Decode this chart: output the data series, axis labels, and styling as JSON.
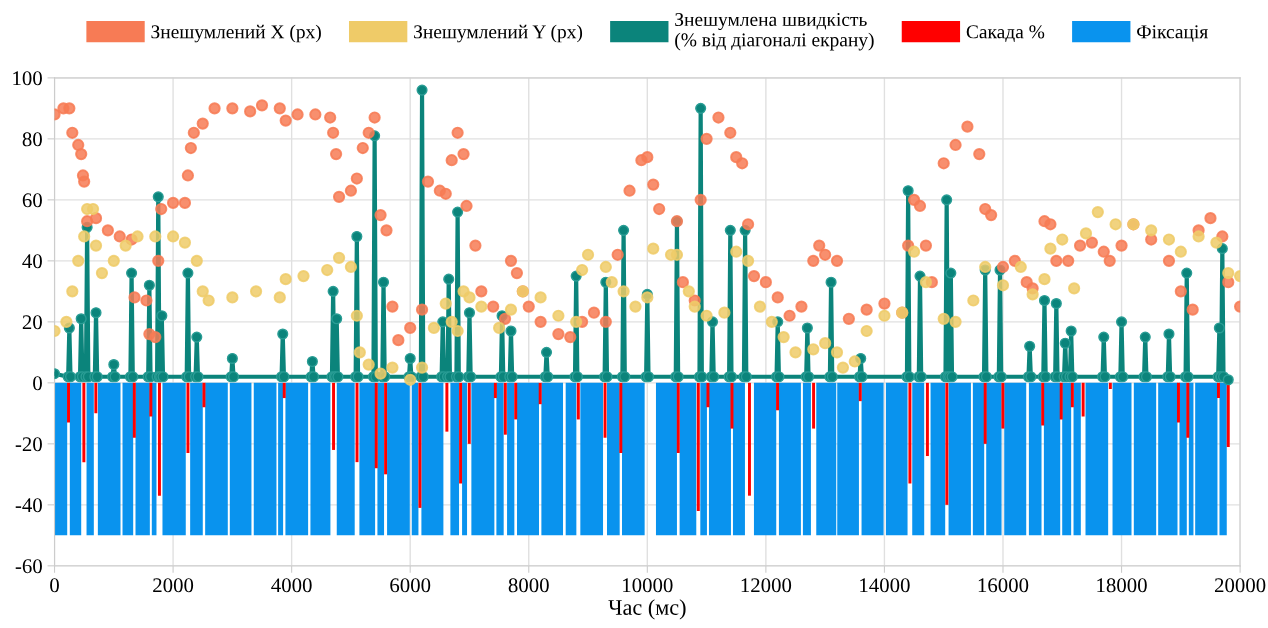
{
  "chart_data": {
    "type": "scatter",
    "xlabel": "Час (мс)",
    "xlim": [
      0,
      20000
    ],
    "xticks": [
      0,
      2000,
      4000,
      6000,
      8000,
      10000,
      12000,
      14000,
      16000,
      18000,
      20000
    ],
    "ylim": [
      -60,
      100
    ],
    "yticks": [
      -60,
      -40,
      -20,
      0,
      20,
      40,
      60,
      80,
      100
    ],
    "grid": true,
    "legend": "top",
    "series": [
      {
        "name": "Знешумлений X (px)",
        "marker": "circle",
        "color": "#f77b55",
        "x": [
          0,
          150,
          250,
          300,
          400,
          450,
          480,
          500,
          550,
          700,
          900,
          1100,
          1300,
          1350,
          1550,
          1600,
          1700,
          1750,
          1800,
          2000,
          2200,
          2250,
          2300,
          2350,
          2500,
          2700,
          3000,
          3300,
          3500,
          3800,
          3900,
          4100,
          4400,
          4650,
          4700,
          4750,
          4800,
          5000,
          5100,
          5200,
          5300,
          5400,
          5500,
          5600,
          5700,
          5800,
          6000,
          6200,
          6300,
          6500,
          6600,
          6700,
          6800,
          6900,
          6950,
          7100,
          7200,
          7400,
          7600,
          7700,
          7800,
          7900,
          8000,
          8200,
          8500,
          8700,
          8900,
          9100,
          9300,
          9500,
          9700,
          9900,
          10000,
          10100,
          10200,
          10500,
          10600,
          10800,
          10900,
          11000,
          11200,
          11400,
          11500,
          11600,
          11700,
          11800,
          12000,
          12200,
          12400,
          12600,
          12800,
          12900,
          13000,
          13200,
          13400,
          13700,
          14000,
          14300,
          14400,
          14500,
          14600,
          14700,
          14800,
          15000,
          15200,
          15400,
          15600,
          15700,
          15800,
          16000,
          16200,
          16400,
          16500,
          16700,
          16800,
          16900,
          17100,
          17300,
          17500,
          17700,
          17800,
          18000,
          18200,
          18500,
          18800,
          19000,
          19200,
          19300,
          19500,
          19700,
          19800,
          20000
        ],
        "values": [
          88,
          90,
          90,
          82,
          78,
          75,
          68,
          66,
          53,
          54,
          50,
          48,
          47,
          28,
          27,
          16,
          15,
          40,
          57,
          59,
          59,
          68,
          77,
          82,
          85,
          90,
          90,
          89,
          91,
          90,
          86,
          88,
          88,
          87,
          82,
          75,
          61,
          63,
          67,
          77,
          82,
          87,
          55,
          50,
          25,
          14,
          18,
          24,
          66,
          63,
          62,
          73,
          82,
          75,
          58,
          45,
          30,
          25,
          21,
          40,
          36,
          30,
          25,
          20,
          16,
          15,
          20,
          23,
          20,
          42,
          63,
          73,
          74,
          65,
          57,
          53,
          33,
          27,
          60,
          80,
          87,
          82,
          74,
          72,
          52,
          35,
          33,
          28,
          22,
          25,
          40,
          45,
          42,
          40,
          21,
          24,
          26,
          23,
          45,
          60,
          58,
          45,
          33,
          72,
          78,
          84,
          75,
          57,
          55,
          38,
          40,
          33,
          31,
          53,
          52,
          40,
          40,
          45,
          46,
          43,
          40,
          45,
          52,
          47,
          40,
          30,
          24,
          50,
          54,
          48,
          33,
          25
        ]
      },
      {
        "name": "Знешумлений Y (px)",
        "type": "scatter",
        "marker": "circle",
        "color": "#efcb68",
        "x": [
          0,
          200,
          300,
          400,
          500,
          550,
          650,
          700,
          800,
          1000,
          1200,
          1400,
          1700,
          2000,
          2200,
          2400,
          2500,
          2600,
          3000,
          3400,
          3800,
          3900,
          4200,
          4600,
          4800,
          5000,
          5100,
          5150,
          5300,
          5500,
          5700,
          6000,
          6200,
          6400,
          6600,
          6700,
          6800,
          6900,
          7000,
          7200,
          7500,
          7700,
          7900,
          8200,
          8500,
          8800,
          8900,
          9000,
          9300,
          9400,
          9600,
          9800,
          10000,
          10100,
          10400,
          10500,
          10700,
          10800,
          11000,
          11300,
          11500,
          11700,
          11900,
          12100,
          12300,
          12500,
          12800,
          13000,
          13200,
          13300,
          13500,
          13700,
          14000,
          14300,
          14500,
          14700,
          15000,
          15200,
          15500,
          15700,
          16000,
          16300,
          16500,
          16700,
          16800,
          17000,
          17200,
          17400,
          17600,
          17900,
          18200,
          18500,
          18800,
          19000,
          19300,
          19600,
          19800,
          20000
        ],
        "values": [
          17,
          20,
          30,
          40,
          48,
          57,
          57,
          45,
          36,
          40,
          45,
          48,
          48,
          48,
          46,
          40,
          30,
          27,
          28,
          30,
          28,
          34,
          35,
          37,
          41,
          38,
          22,
          10,
          6,
          3,
          5,
          1,
          5,
          18,
          26,
          20,
          17,
          30,
          28,
          25,
          18,
          24,
          30,
          28,
          22,
          20,
          37,
          42,
          38,
          33,
          30,
          25,
          28,
          44,
          42,
          42,
          30,
          25,
          22,
          23,
          43,
          40,
          25,
          20,
          15,
          10,
          11,
          13,
          10,
          5,
          7,
          17,
          22,
          23,
          43,
          33,
          21,
          20,
          27,
          38,
          32,
          38,
          29,
          34,
          44,
          47,
          31,
          49,
          56,
          52,
          52,
          50,
          47,
          43,
          48,
          46,
          36,
          35
        ]
      },
      {
        "name": "Знешумлена швидкість\n(% від діагоналі екрану)",
        "type": "line",
        "marker": "circle",
        "color": "#0b847b",
        "x": [
          0,
          230,
          250,
          270,
          430,
          450,
          470,
          530,
          550,
          570,
          680,
          700,
          720,
          980,
          1000,
          1020,
          1280,
          1300,
          1320,
          1580,
          1600,
          1620,
          1730,
          1750,
          1770,
          1790,
          1810,
          1830,
          2230,
          2250,
          2270,
          2380,
          2400,
          2420,
          2980,
          3000,
          3020,
          3830,
          3850,
          3870,
          4330,
          4350,
          4370,
          4680,
          4700,
          4720,
          4740,
          4760,
          4780,
          5080,
          5100,
          5120,
          5380,
          5400,
          5420,
          5530,
          5550,
          5570,
          5980,
          6000,
          6020,
          6180,
          6200,
          6220,
          6530,
          6550,
          6570,
          6630,
          6650,
          6670,
          6780,
          6800,
          6820,
          6980,
          7000,
          7020,
          7530,
          7550,
          7570,
          7680,
          7700,
          7720,
          8280,
          8300,
          8320,
          8780,
          8800,
          8820,
          9280,
          9300,
          9320,
          9580,
          9600,
          9620,
          9980,
          10000,
          10020,
          10480,
          10500,
          10520,
          10880,
          10900,
          10920,
          11080,
          11100,
          11120,
          11380,
          11400,
          11420,
          11630,
          11650,
          11670,
          12180,
          12200,
          12220,
          12680,
          12700,
          12720,
          13080,
          13100,
          13120,
          13580,
          13600,
          13620,
          14380,
          14400,
          14420,
          14580,
          14600,
          14620,
          15030,
          15050,
          15070,
          15100,
          15120,
          15140,
          15680,
          15700,
          15720,
          15930,
          15950,
          15970,
          16430,
          16450,
          16470,
          16680,
          16700,
          16720,
          16880,
          16900,
          16920,
          17030,
          17050,
          17070,
          17130,
          17150,
          17170,
          17680,
          17700,
          17720,
          17980,
          18000,
          18020,
          18380,
          18400,
          18420,
          18780,
          18800,
          18820,
          19080,
          19100,
          19120,
          19630,
          19650,
          19670,
          19680,
          19700,
          19720,
          19800
        ],
        "values": [
          3,
          2,
          18,
          2,
          2,
          21,
          2,
          2,
          51,
          2,
          2,
          23,
          2,
          2,
          6,
          2,
          2,
          36,
          2,
          2,
          32,
          2,
          2,
          61,
          2,
          2,
          22,
          2,
          2,
          36,
          2,
          2,
          15,
          2,
          2,
          8,
          2,
          2,
          16,
          2,
          2,
          7,
          2,
          2,
          30,
          2,
          2,
          21,
          2,
          2,
          48,
          2,
          2,
          81,
          2,
          2,
          33,
          2,
          2,
          8,
          2,
          2,
          96,
          2,
          2,
          20,
          2,
          2,
          34,
          2,
          2,
          56,
          2,
          2,
          23,
          2,
          2,
          22,
          2,
          2,
          17,
          2,
          2,
          10,
          2,
          2,
          35,
          2,
          2,
          33,
          2,
          2,
          50,
          2,
          2,
          29,
          2,
          2,
          53,
          2,
          2,
          90,
          2,
          2,
          20,
          2,
          2,
          50,
          2,
          2,
          50,
          2,
          2,
          20,
          2,
          2,
          18,
          2,
          2,
          33,
          2,
          2,
          8,
          2,
          2,
          63,
          2,
          2,
          35,
          2,
          2,
          60,
          2,
          2,
          36,
          2,
          2,
          37,
          2,
          2,
          37,
          2,
          2,
          12,
          2,
          2,
          27,
          2,
          2,
          26,
          2,
          2,
          13,
          2,
          2,
          17,
          2,
          2,
          15,
          2,
          2,
          20,
          2,
          2,
          15,
          2,
          2,
          16,
          2,
          2,
          36,
          2,
          2,
          18,
          2,
          2,
          44,
          2,
          1
        ]
      },
      {
        "name": "Сакада %",
        "type": "bar",
        "color": "#ff0000",
        "x": [
          236,
          495,
          697,
          1346,
          1625,
          1770,
          2251,
          2521,
          3875,
          4707,
          5103,
          5427,
          5585,
          6164,
          6619,
          6850,
          6996,
          7437,
          7605,
          7780,
          8193,
          8836,
          9287,
          9553,
          10522,
          10860,
          11023,
          11428,
          11723,
          12197,
          12805,
          13592,
          14430,
          14725,
          15053,
          15700,
          15998,
          16670,
          16982,
          17170,
          17352,
          17811,
          18960,
          19118,
          19635,
          19800
        ],
        "values": [
          -13,
          -26,
          -10,
          -18,
          -11,
          -37,
          -23,
          -8,
          -5,
          -22,
          -26,
          -28,
          -30,
          -41,
          -16,
          -33,
          -20,
          -5,
          -17,
          -12,
          -7,
          -12,
          -18,
          -23,
          -23,
          -42,
          -8,
          -15,
          -37,
          -9,
          -15,
          -6,
          -33,
          -24,
          -40,
          -20,
          -15,
          -14,
          -12,
          -8,
          -11,
          -2,
          -13,
          -18,
          -5,
          -21
        ]
      },
      {
        "name": "Фіксація",
        "type": "area",
        "color": "#0993ee",
        "x": [
          0,
          214,
          236,
          258,
          450,
          495,
          540,
          663,
          697,
          731,
          1113,
          1130,
          1147,
          1327,
          1346,
          1366,
          1608,
          1625,
          1641,
          1720,
          1770,
          1821,
          2214,
          2251,
          2288,
          2501,
          2521,
          2541,
          2923,
          2940,
          2957,
          3322,
          3340,
          3361,
          3744,
          3758,
          3772,
          3856,
          3875,
          3895,
          4278,
          4297,
          4317,
          4654,
          4707,
          4761,
          5064,
          5103,
          5143,
          5408,
          5427,
          5447,
          5559,
          5585,
          5610,
          5993,
          6010,
          6026,
          6139,
          6164,
          6189,
          6560,
          6619,
          6678,
          6824,
          6850,
          6875,
          6959,
          6996,
          7032,
          7420,
          7437,
          7454,
          7577,
          7605,
          7634,
          7757,
          7780,
          7802,
          8173,
          8193,
          8213,
          8578,
          8600,
          8623,
          8803,
          8836,
          8870,
          9253,
          9287,
          9320,
          9534,
          9553,
          9573,
          9955,
          10050,
          10146,
          10500,
          10522,
          10545,
          10826,
          10860,
          10894,
          11006,
          11023,
          11040,
          11411,
          11428,
          11445,
          11647,
          11723,
          11799,
          12175,
          12197,
          12220,
          12591,
          12608,
          12625,
          12760,
          12805,
          12850,
          13187,
          13195,
          13204,
          13570,
          13592,
          13614,
          13986,
          14005,
          14025,
          14390,
          14430,
          14469,
          14671,
          14725,
          14778,
          15025,
          15053,
          15082,
          15459,
          15475,
          15492,
          15683,
          15700,
          15717,
          15976,
          15998,
          16021,
          16392,
          16414,
          16437,
          16650,
          16670,
          16690,
          16965,
          16982,
          16999,
          17150,
          17170,
          17190,
          17313,
          17352,
          17392,
          17774,
          17811,
          17848,
          18168,
          18187,
          18207,
          18584,
          18601,
          18618,
          18944,
          18960,
          18977,
          19101,
          19118,
          19135,
          19213,
          19227,
          19242,
          19618,
          19635,
          19652,
          19775
        ],
        "values": [
          -50,
          -50,
          null,
          -50,
          -50,
          null,
          -50,
          -50,
          null,
          -50,
          -50,
          null,
          -50,
          -50,
          null,
          -50,
          -50,
          null,
          -50,
          -50,
          null,
          -50,
          -50,
          null,
          -50,
          -50,
          null,
          -50,
          -50,
          null,
          -50,
          -50,
          null,
          -50,
          -50,
          null,
          -50,
          -50,
          null,
          -50,
          -50,
          null,
          -50,
          -50,
          null,
          -50,
          -50,
          null,
          -50,
          -50,
          null,
          -50,
          -50,
          null,
          -50,
          -50,
          null,
          -50,
          -50,
          null,
          -50,
          -50,
          null,
          -50,
          -50,
          null,
          -50,
          -50,
          null,
          -50,
          -50,
          null,
          -50,
          -50,
          null,
          -50,
          -50,
          null,
          -50,
          -50,
          null,
          -50,
          -50,
          null,
          -50,
          -50,
          null,
          -50,
          -50,
          null,
          -50,
          -50,
          null,
          -50,
          -50,
          null,
          -50,
          -50,
          null,
          -50,
          -50,
          null,
          -50,
          -50,
          null,
          -50,
          -50,
          null,
          -50,
          -50,
          null,
          -50,
          -50,
          null,
          -50,
          -50,
          null,
          -50,
          -50,
          null,
          -50,
          -50,
          null,
          -50,
          -50,
          null,
          -50,
          -50,
          null,
          -50,
          -50,
          null,
          -50,
          -50,
          null,
          -50,
          -50,
          null,
          -50,
          -50,
          null,
          -50,
          -50,
          null,
          -50,
          -50,
          null,
          -50,
          -50,
          null,
          -50,
          -50,
          null,
          -50,
          -50,
          null,
          -50,
          -50,
          null,
          -50,
          -50,
          null,
          -50,
          -50,
          null,
          -50,
          -50,
          null,
          -50,
          -50,
          null,
          -50,
          -50,
          null,
          -50,
          -50,
          null,
          -50,
          -50,
          null,
          -50,
          -50,
          null,
          -50,
          -50
        ]
      }
    ]
  }
}
